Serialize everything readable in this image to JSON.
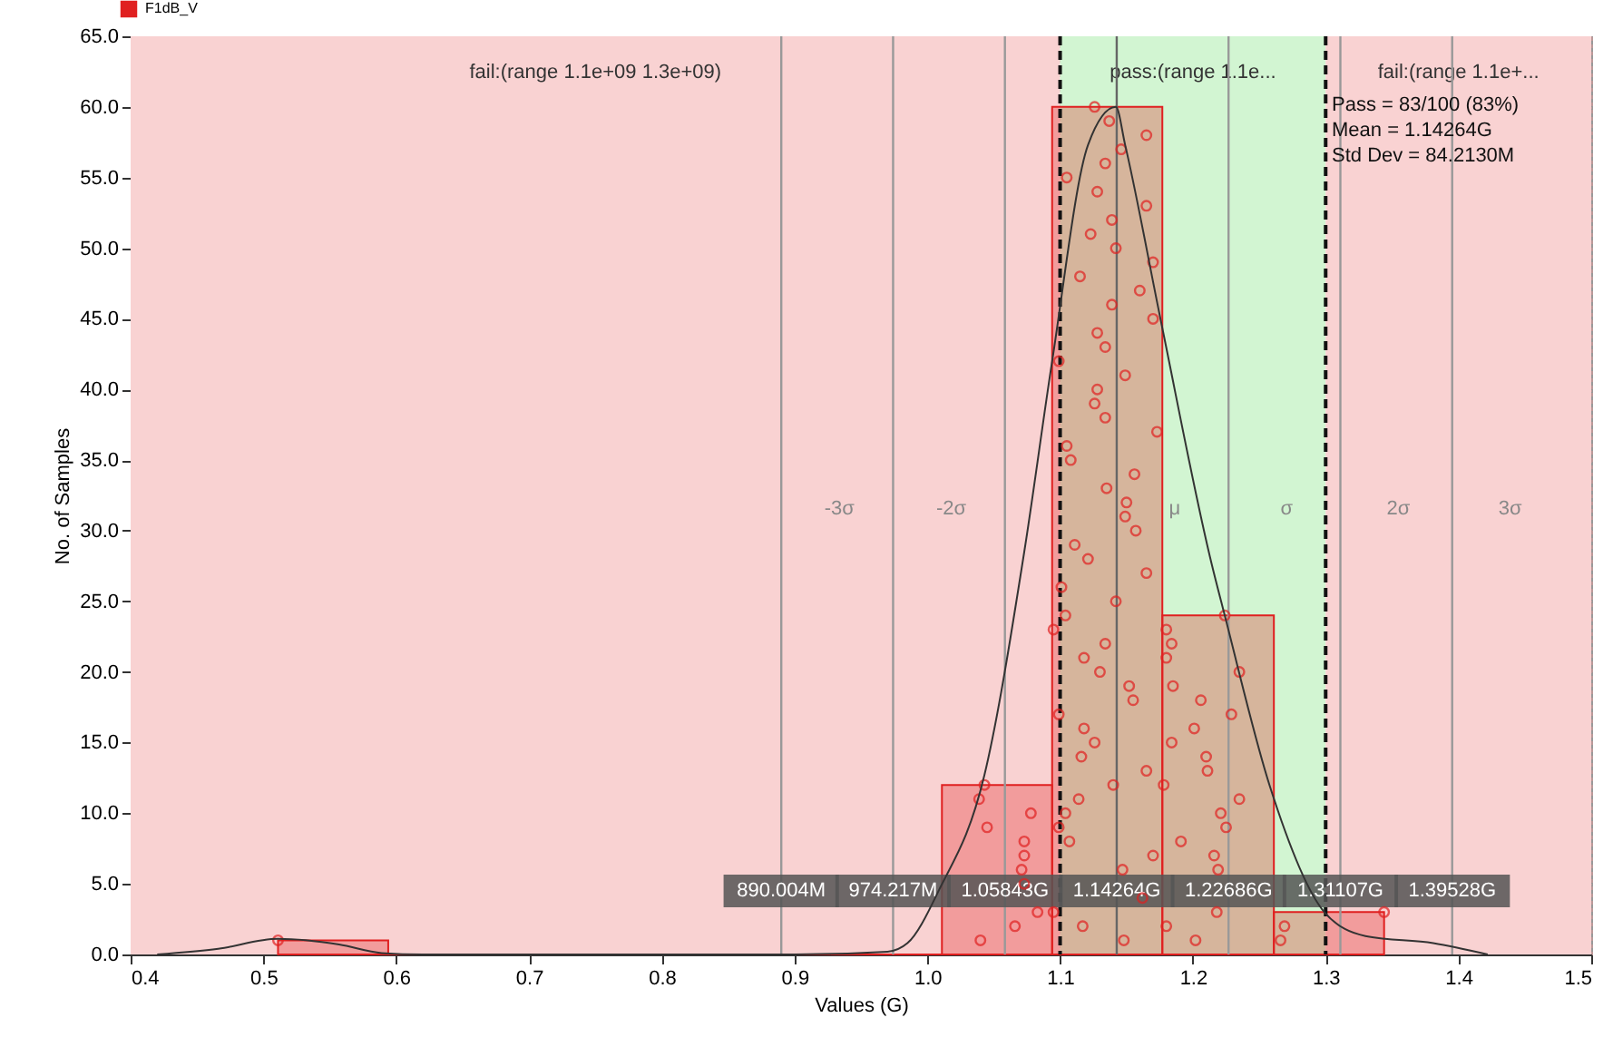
{
  "chart_data": {
    "type": "histogram",
    "xlabel": "Values (G)",
    "ylabel": "No. of Samples",
    "bins": [
      0.511,
      0.594,
      0.677,
      0.761,
      0.844,
      0.927,
      1.011,
      1.094,
      1.177,
      1.261,
      1.344
    ],
    "series": [
      {
        "name": "F1dB_V",
        "color": "#e02020",
        "values": [
          1,
          0,
          0,
          0,
          0,
          0,
          12,
          60,
          24,
          3
        ]
      },
      {
        "type": "scatter",
        "color": "#e02020",
        "marker": "circle",
        "x": [
          0.511,
          1.126,
          1.137,
          1.165,
          1.146,
          1.134,
          1.105,
          1.128,
          1.165,
          1.139,
          1.123,
          1.142,
          1.17,
          1.115,
          1.16,
          1.139,
          1.17,
          1.128,
          1.134,
          1.099,
          1.149,
          1.128,
          1.126,
          1.134,
          1.173,
          1.105,
          1.108,
          1.156,
          1.135,
          1.15,
          1.149,
          1.157,
          1.111,
          1.121,
          1.165,
          1.101,
          1.142,
          1.104,
          1.224,
          1.095,
          1.18,
          1.134,
          1.184,
          1.118,
          1.18,
          1.13,
          1.235,
          1.152,
          1.185,
          1.155,
          1.206,
          1.099,
          1.229,
          1.118,
          1.201,
          1.126,
          1.184,
          1.116,
          1.21,
          1.165,
          1.211,
          1.043,
          1.14,
          1.178,
          1.039,
          1.114,
          1.235,
          1.078,
          1.104,
          1.221,
          1.045,
          1.099,
          1.225,
          1.073,
          1.107,
          1.191,
          1.073,
          1.17,
          1.216,
          1.071,
          1.147,
          1.219,
          1.073,
          1.162,
          1.083,
          1.095,
          1.218,
          1.344,
          1.066,
          1.117,
          1.18,
          1.269,
          1.04,
          1.148,
          1.202,
          1.266
        ],
        "values": [
          1,
          60,
          59,
          58,
          57,
          56,
          55,
          54,
          53,
          52,
          51,
          50,
          49,
          48,
          47,
          46,
          45,
          44,
          43,
          42,
          41,
          40,
          39,
          38,
          37,
          36,
          35,
          34,
          33,
          32,
          31,
          30,
          29,
          28,
          27,
          26,
          25,
          24,
          24,
          23,
          23,
          22,
          22,
          21,
          21,
          20,
          20,
          19,
          19,
          18,
          18,
          17,
          17,
          16,
          16,
          15,
          15,
          14,
          14,
          13,
          13,
          12,
          12,
          12,
          11,
          11,
          11,
          10,
          10,
          10,
          9,
          9,
          9,
          8,
          8,
          8,
          7,
          7,
          7,
          6,
          6,
          6,
          5,
          4,
          3,
          3,
          3,
          3,
          2,
          2,
          2,
          2,
          1,
          1,
          1,
          1
        ]
      },
      {
        "type": "line",
        "color": "#333333",
        "line_style": "solid",
        "x": [
          0.42,
          0.466,
          0.511,
          0.557,
          0.589,
          0.62,
          0.9,
          0.97,
          0.985,
          1.009,
          1.043,
          1.073,
          1.094,
          1.121,
          1.142,
          1.149,
          1.176,
          1.214,
          1.224,
          1.258,
          1.299,
          1.33,
          1.381,
          1.422
        ],
        "values": [
          0,
          0.4,
          1.1,
          0.7,
          0.1,
          0,
          0,
          0.2,
          0.8,
          4.6,
          12.7,
          28.5,
          42,
          57.3,
          60,
          57.3,
          44.8,
          27.7,
          24,
          11.9,
          3,
          1.3,
          0.8,
          0
        ]
      }
    ],
    "xlim": [
      0.4,
      1.5
    ],
    "xticks": [
      0.4,
      0.5,
      0.6,
      0.7,
      0.8,
      0.9,
      {
        "value": 1,
        "label": "1.0"
      },
      1.1,
      1.2,
      1.3,
      1.4,
      1.5
    ],
    "ylim": [
      0,
      65
    ],
    "yticks": [
      {
        "value": 0,
        "label": "0.0"
      },
      {
        "value": 5,
        "label": "5.0"
      },
      {
        "value": 10,
        "label": "10.0"
      },
      {
        "value": 15,
        "label": "15.0"
      },
      {
        "value": 20,
        "label": "20.0"
      },
      {
        "value": 25,
        "label": "25.0"
      },
      {
        "value": 30,
        "label": "30.0"
      },
      {
        "value": 35,
        "label": "35.0"
      },
      {
        "value": 40,
        "label": "40.0"
      },
      {
        "value": 45,
        "label": "45.0"
      },
      {
        "value": 50,
        "label": "50.0"
      },
      {
        "value": 55,
        "label": "55.0"
      },
      {
        "value": 60,
        "label": "60.0"
      },
      {
        "value": 65,
        "label": "65.0"
      }
    ],
    "grid": true,
    "legend": "top left",
    "bands": [
      {
        "axis": "x",
        "from": 0.4,
        "to": 1.1,
        "color": "#f9d2d2",
        "label": "fail:(range 1.1e+09 1.3e+09)"
      },
      {
        "axis": "x",
        "from": 1.1,
        "to": 1.3,
        "color": "#d2f5d2",
        "label": "pass:(range 1.1e..."
      },
      {
        "axis": "x",
        "from": 1.3,
        "to": 1.5,
        "color": "#f9d2d2",
        "label": "fail:(range 1.1e+..."
      }
    ],
    "ref_lines": [
      {
        "axis": "x",
        "value": 0.890004,
        "label": "-3σ",
        "color": "#999999"
      },
      {
        "axis": "x",
        "value": 0.974217,
        "label": "-2σ",
        "color": "#999999"
      },
      {
        "axis": "x",
        "value": 1.05843,
        "color": "#999999"
      },
      {
        "axis": "x",
        "value": 1.14264,
        "label": "μ",
        "color": "#666666"
      },
      {
        "axis": "x",
        "value": 1.22686,
        "label": "σ",
        "color": "#999999"
      },
      {
        "axis": "x",
        "value": 1.31107,
        "label": "2σ",
        "color": "#999999"
      },
      {
        "axis": "x",
        "value": 1.39528,
        "label": "3σ",
        "color": "#999999"
      },
      {
        "axis": "x",
        "value": 1.1,
        "color": "#111111",
        "line_style": "dashed"
      },
      {
        "axis": "x",
        "value": 1.3,
        "color": "#111111",
        "line_style": "dashed"
      }
    ],
    "annotations": [
      "Pass = 83/100 (83%)",
      "Mean = 1.14264G",
      "Std Dev = 84.2130M",
      {
        "text": "890.004M",
        "x": 0.890004,
        "y": 4.5
      },
      {
        "text": "974.217M",
        "x": 0.974217,
        "y": 4.5
      },
      {
        "text": "1.05843G",
        "x": 1.05843,
        "y": 4.5
      },
      {
        "text": "1.14264G",
        "x": 1.14264,
        "y": 4.5
      },
      {
        "text": "1.22686G",
        "x": 1.22686,
        "y": 4.5
      },
      {
        "text": "1.31107G",
        "x": 1.31107,
        "y": 4.5
      },
      {
        "text": "1.39528G",
        "x": 1.39528,
        "y": 4.5
      }
    ]
  }
}
